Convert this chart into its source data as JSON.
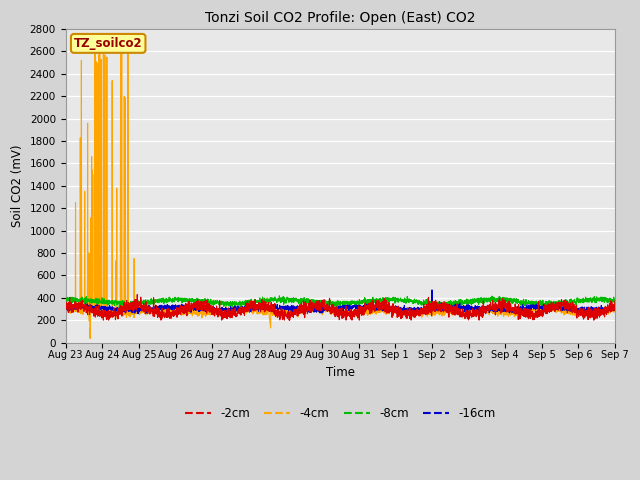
{
  "title": "Tonzi Soil CO2 Profile: Open (East) CO2",
  "xlabel": "Time",
  "ylabel": "Soil CO2 (mV)",
  "ylim": [
    0,
    2800
  ],
  "yticks": [
    0,
    200,
    400,
    600,
    800,
    1000,
    1200,
    1400,
    1600,
    1800,
    2000,
    2200,
    2400,
    2600,
    2800
  ],
  "fig_bg": "#d4d4d4",
  "plot_bg": "#e8e8e8",
  "legend_label": "TZ_soilco2",
  "legend_box_color": "#ffff99",
  "legend_box_edge": "#cc8800",
  "colors": {
    "-2cm": "#dd0000",
    "-4cm": "#ffa500",
    "-8cm": "#00bb00",
    "-16cm": "#0000cc"
  },
  "line_width": 0.8,
  "tick_labels": [
    "Aug 23",
    "Aug 24",
    "Aug 25",
    "Aug 26",
    "Aug 27",
    "Aug 28",
    "Aug 29",
    "Aug 30",
    "Aug 31",
    "Sep 1",
    "Sep 2",
    "Sep 3",
    "Sep 4",
    "Sep 5",
    "Sep 6",
    "Sep 7"
  ],
  "n_days": 15,
  "figsize": [
    6.4,
    4.8
  ],
  "dpi": 100,
  "orange_spikes": [
    [
      0.27,
      1250
    ],
    [
      0.4,
      1830
    ],
    [
      0.43,
      2520
    ],
    [
      0.52,
      1350
    ],
    [
      0.6,
      1960
    ],
    [
      0.63,
      800
    ],
    [
      0.64,
      790
    ],
    [
      0.65,
      640
    ],
    [
      0.66,
      630
    ],
    [
      0.67,
      130
    ],
    [
      0.69,
      1115
    ],
    [
      0.71,
      1660
    ],
    [
      0.73,
      1540
    ],
    [
      0.74,
      1500
    ],
    [
      0.8,
      2710
    ],
    [
      0.83,
      2510
    ],
    [
      0.87,
      2490
    ],
    [
      0.9,
      2570
    ],
    [
      0.93,
      2600
    ],
    [
      0.97,
      2530
    ],
    [
      1.03,
      2580
    ],
    [
      1.07,
      2570
    ],
    [
      1.13,
      2550
    ],
    [
      1.27,
      2340
    ],
    [
      1.37,
      730
    ],
    [
      1.4,
      1380
    ],
    [
      1.5,
      2750
    ],
    [
      1.53,
      2750
    ],
    [
      1.6,
      2200
    ],
    [
      1.63,
      2190
    ],
    [
      1.7,
      2640
    ],
    [
      1.87,
      750
    ]
  ],
  "blue_spike_day": 10.0,
  "blue_spike_val": 470
}
